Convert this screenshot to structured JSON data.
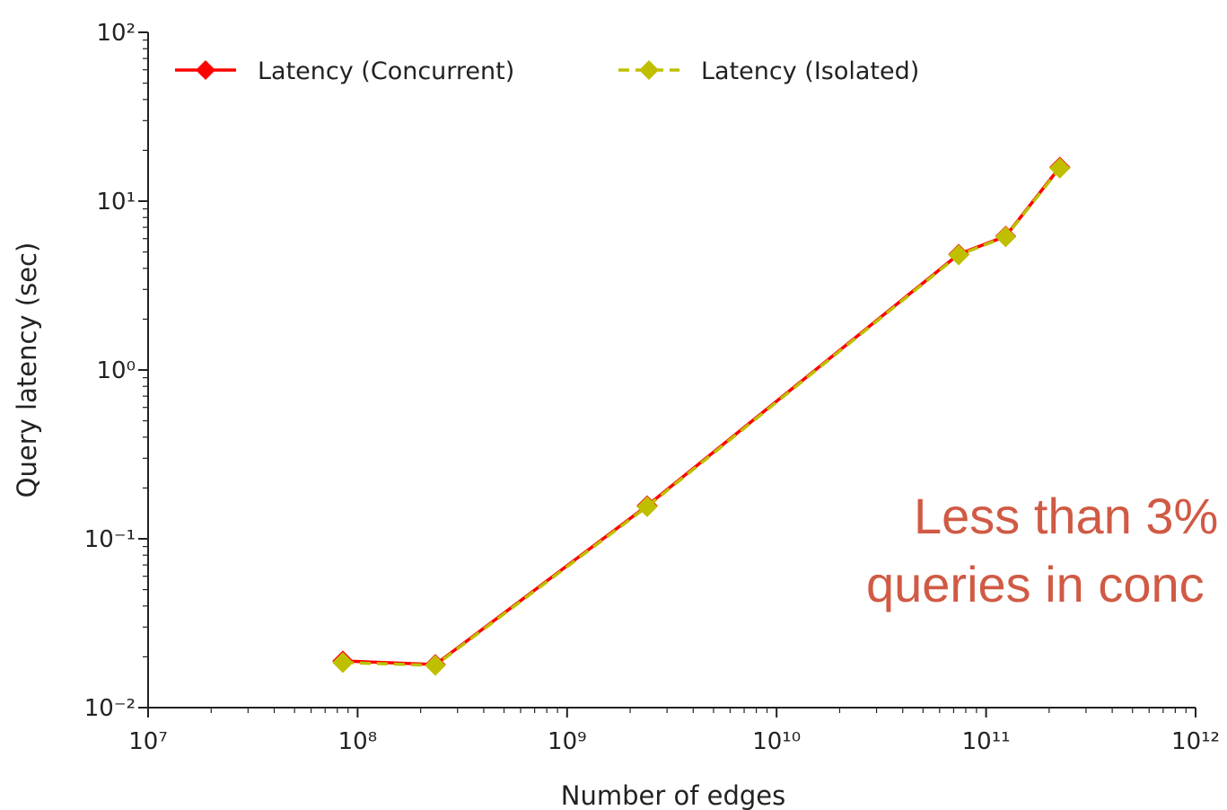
{
  "chart_data": {
    "type": "line",
    "xlabel": "Number of edges",
    "ylabel": "Query latency (sec)",
    "xscale": "log",
    "yscale": "log",
    "xlim": [
      10000000,
      1000000000000
    ],
    "ylim": [
      0.01,
      100
    ],
    "xticks": [
      {
        "value": 10000000,
        "label": "10⁷"
      },
      {
        "value": 100000000,
        "label": "10⁸"
      },
      {
        "value": 1000000000,
        "label": "10⁹"
      },
      {
        "value": 10000000000,
        "label": "10¹⁰"
      },
      {
        "value": 100000000000,
        "label": "10¹¹"
      },
      {
        "value": 1000000000000,
        "label": "10¹²"
      }
    ],
    "yticks": [
      {
        "value": 0.01,
        "label": "10⁻²"
      },
      {
        "value": 0.1,
        "label": "10⁻¹"
      },
      {
        "value": 1,
        "label": "10⁰"
      },
      {
        "value": 10,
        "label": "10¹"
      },
      {
        "value": 100,
        "label": "10²"
      }
    ],
    "legend": "upper left",
    "x": [
      85000000,
      235000000,
      2410000000,
      74000000000,
      124000000000,
      225000000000
    ],
    "series": [
      {
        "name": "Latency (Concurrent)",
        "color": "#ff0000",
        "linestyle": "solid",
        "values": [
          0.0189,
          0.018,
          0.157,
          4.85,
          6.2,
          15.9
        ]
      },
      {
        "name": "Latency (Isolated)",
        "color": "#bfbf00",
        "linestyle": "dashed",
        "values": [
          0.0185,
          0.0178,
          0.155,
          4.8,
          6.15,
          15.7
        ]
      }
    ],
    "annotations": [
      "Less than 3%",
      "queries in conc"
    ]
  }
}
